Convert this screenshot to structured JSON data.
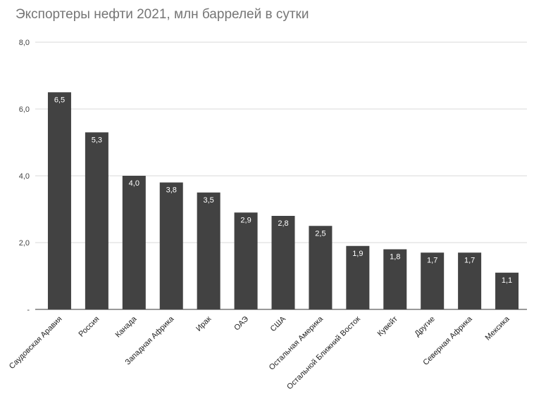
{
  "chart_data": {
    "type": "bar",
    "title": "Экспортеры нефти 2021, млн баррелей в сутки",
    "xlabel": "",
    "ylabel": "",
    "categories": [
      "Саудовская Аравия",
      "Россия",
      "Канада",
      "Западная Африка",
      "Ирак",
      "ОАЭ",
      "США",
      "Остальная Америка",
      "Остальной Ближний Восток",
      "Кувейт",
      "Другие",
      "Северная Африка",
      "Мексика"
    ],
    "values": [
      6.5,
      5.3,
      4.0,
      3.8,
      3.5,
      2.9,
      2.8,
      2.5,
      1.9,
      1.8,
      1.7,
      1.7,
      1.1
    ],
    "data_labels": [
      "6,5",
      "5,3",
      "4,0",
      "3,8",
      "3,5",
      "2,9",
      "2,8",
      "2,5",
      "1,9",
      "1,8",
      "1,7",
      "1,7",
      "1,1"
    ],
    "ylim": [
      0,
      8
    ],
    "yticks": [
      0,
      2,
      4,
      6,
      8
    ],
    "ytick_labels": [
      "-",
      "2,0",
      "4,0",
      "6,0",
      "8,0"
    ],
    "grid": true,
    "legend": "none",
    "bar_color": "#424242"
  }
}
